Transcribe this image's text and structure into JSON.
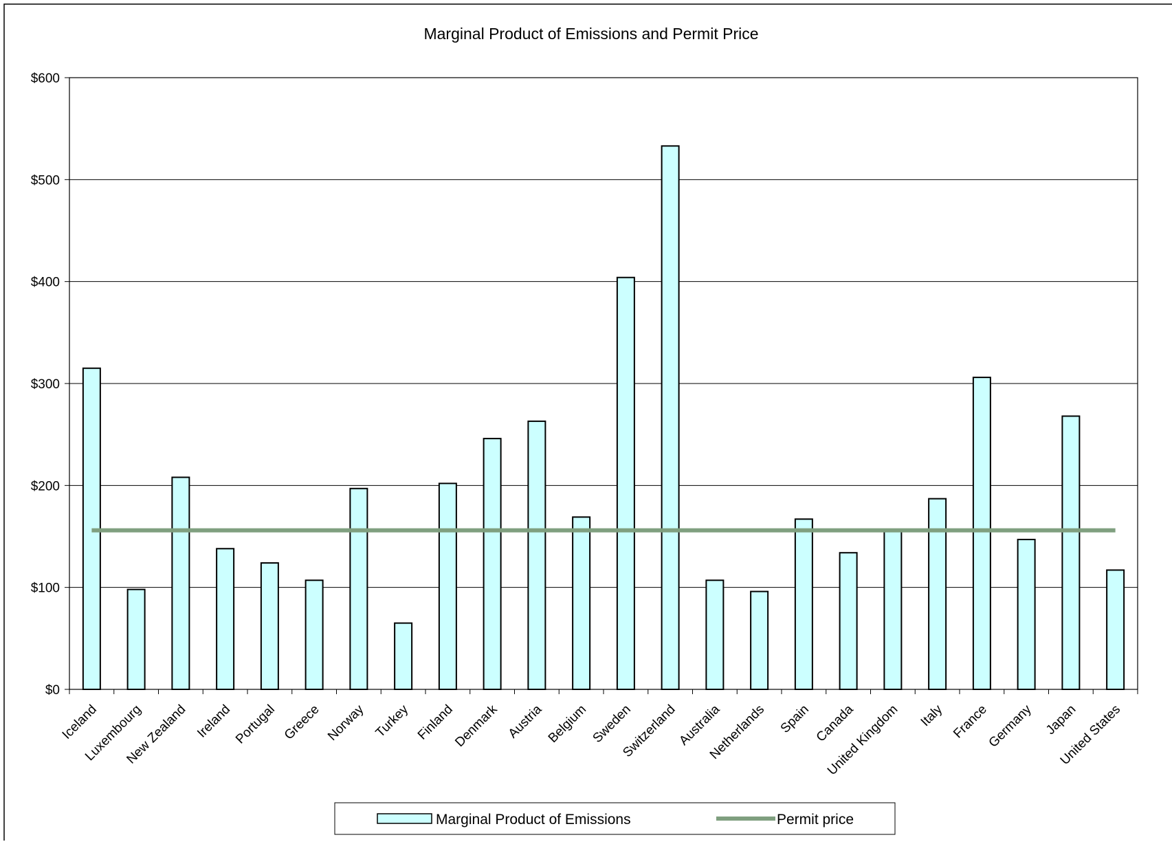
{
  "chart_data": {
    "type": "bar",
    "title": "Marginal Product of Emissions and Permit Price",
    "xlabel": "",
    "ylabel": "",
    "ylim": [
      0,
      600
    ],
    "yticks": [
      0,
      100,
      200,
      300,
      400,
      500,
      600
    ],
    "ytick_labels": [
      "$0",
      "$100",
      "$200",
      "$300",
      "$400",
      "$500",
      "$600"
    ],
    "grid": true,
    "legend_position": "bottom",
    "categories": [
      "Iceland",
      "Luxembourg",
      "New Zealand",
      "Ireland",
      "Portugal",
      "Greece",
      "Norway",
      "Turkey",
      "Finland",
      "Denmark",
      "Austria",
      "Belgium",
      "Sweden",
      "Switzerland",
      "Australia",
      "Netherlands",
      "Spain",
      "Canada",
      "United Kingdom",
      "Italy",
      "France",
      "Germany",
      "Japan",
      "United States"
    ],
    "series": [
      {
        "name": "Marginal Product of Emissions",
        "type": "bar",
        "color": "#ccffff",
        "values": [
          315,
          98,
          208,
          138,
          124,
          107,
          197,
          65,
          202,
          246,
          263,
          169,
          404,
          533,
          107,
          96,
          167,
          134,
          155,
          187,
          306,
          147,
          268,
          117
        ]
      },
      {
        "name": "Permit price",
        "type": "line",
        "color": "#7f9f7f",
        "value": 156
      }
    ]
  }
}
